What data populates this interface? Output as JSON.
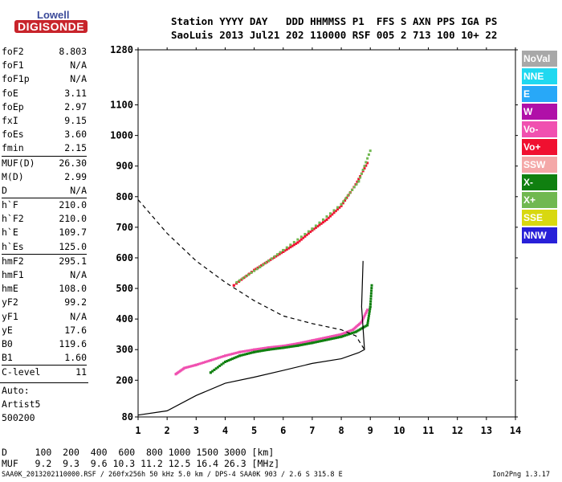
{
  "logo": {
    "top": "Lowell",
    "bottom": "DIGISONDE"
  },
  "header": {
    "line1": "Station YYYY DAY   DDD HHMMSS P1  FFS S AXN PPS IGA PS",
    "line2": "SaoLuis 2013 Jul21 202 110000 RSF 005 2 713 100 10+ 22"
  },
  "params": [
    {
      "label": "foF2",
      "value": "8.803"
    },
    {
      "label": "foF1",
      "value": "N/A"
    },
    {
      "label": "foF1p",
      "value": "N/A"
    },
    {
      "label": "foE",
      "value": "3.11"
    },
    {
      "label": "foEp",
      "value": "2.97"
    },
    {
      "label": "fxI",
      "value": "9.15"
    },
    {
      "label": "foEs",
      "value": "3.60"
    },
    {
      "label": "fmin",
      "value": "2.15"
    },
    {
      "label": "MUF(D)",
      "value": "26.30"
    },
    {
      "label": "M(D)",
      "value": "2.99"
    },
    {
      "label": "D",
      "value": "N/A"
    },
    {
      "label": "h`F",
      "value": "210.0"
    },
    {
      "label": "h`F2",
      "value": "210.0"
    },
    {
      "label": "h`E",
      "value": "109.7"
    },
    {
      "label": "h`Es",
      "value": "125.0"
    },
    {
      "label": "hmF2",
      "value": "295.1"
    },
    {
      "label": "hmF1",
      "value": "N/A"
    },
    {
      "label": "hmE",
      "value": "108.0"
    },
    {
      "label": "yF2",
      "value": "99.2"
    },
    {
      "label": "yF1",
      "value": "N/A"
    },
    {
      "label": "yE",
      "value": "17.6"
    },
    {
      "label": "B0",
      "value": "119.6"
    },
    {
      "label": "B1",
      "value": "1.60"
    },
    {
      "label": "C-level",
      "value": "11"
    }
  ],
  "auto": {
    "label": "Auto:",
    "program": "Artist5",
    "version": "500200"
  },
  "legend": [
    {
      "label": "NoVal",
      "color": "#a8a8a8"
    },
    {
      "label": "NNE",
      "color": "#20d8f0"
    },
    {
      "label": "E",
      "color": "#28a8f8"
    },
    {
      "label": "W",
      "color": "#b010a8"
    },
    {
      "label": "Vo-",
      "color": "#f050b0"
    },
    {
      "label": "Vo+",
      "color": "#f01030"
    },
    {
      "label": "SSW",
      "color": "#f4a8a8"
    },
    {
      "label": "X-",
      "color": "#108010"
    },
    {
      "label": "X+",
      "color": "#70b850"
    },
    {
      "label": "SSE",
      "color": "#d8d810"
    },
    {
      "label": "NNW",
      "color": "#2820d8"
    }
  ],
  "muf_table": {
    "d_label": "D",
    "distances": [
      "100",
      "200",
      "400",
      "600",
      "800",
      "1000",
      "1500",
      "3000"
    ],
    "d_unit": "[km]",
    "muf_label": "MUF",
    "mufs": [
      "9.2",
      "9.3",
      "9.6",
      "10.3",
      "11.2",
      "12.5",
      "16.4",
      "26.3"
    ],
    "muf_unit": "[MHz]"
  },
  "footer": {
    "left": "SAA0K_2013202110000.RSF / 260fx256h 50 kHz 5.0 km / DPS-4 SAA0K 903 / 2.6 S 315.8 E",
    "right": "Ion2Png 1.3.17"
  },
  "chart_data": {
    "type": "scatter",
    "x_ticks": [
      1,
      2,
      3,
      4,
      5,
      6,
      7,
      8,
      9,
      10,
      11,
      12,
      13,
      14
    ],
    "y_ticks": [
      80,
      200,
      300,
      400,
      500,
      600,
      700,
      800,
      900,
      1000,
      1100,
      1280
    ],
    "xlim": [
      1,
      14
    ],
    "ylim": [
      80,
      1280
    ],
    "series": [
      {
        "name": "Vo-",
        "color": "#f050b0",
        "points": [
          [
            2.3,
            220
          ],
          [
            2.6,
            240
          ],
          [
            3.0,
            250
          ],
          [
            3.5,
            265
          ],
          [
            4.0,
            280
          ],
          [
            4.5,
            292
          ],
          [
            5.0,
            300
          ],
          [
            5.5,
            307
          ],
          [
            6.0,
            312
          ],
          [
            6.5,
            320
          ],
          [
            7.0,
            330
          ],
          [
            7.5,
            340
          ],
          [
            8.0,
            350
          ],
          [
            8.4,
            365
          ],
          [
            8.7,
            390
          ],
          [
            8.9,
            430
          ]
        ]
      },
      {
        "name": "X-",
        "color": "#108010",
        "points": [
          [
            3.5,
            225
          ],
          [
            4.0,
            260
          ],
          [
            4.5,
            280
          ],
          [
            5.0,
            292
          ],
          [
            5.5,
            300
          ],
          [
            6.0,
            306
          ],
          [
            6.5,
            313
          ],
          [
            7.0,
            322
          ],
          [
            7.5,
            332
          ],
          [
            8.0,
            342
          ],
          [
            8.5,
            358
          ],
          [
            8.9,
            380
          ],
          [
            9.0,
            440
          ],
          [
            9.05,
            510
          ]
        ]
      },
      {
        "name": "Vo+",
        "color": "#f01030",
        "points": [
          [
            4.3,
            510
          ],
          [
            5.0,
            560
          ],
          [
            5.5,
            590
          ],
          [
            6.0,
            620
          ],
          [
            6.5,
            650
          ],
          [
            7.0,
            690
          ],
          [
            7.5,
            725
          ],
          [
            8.0,
            770
          ],
          [
            8.5,
            840
          ],
          [
            8.9,
            910
          ]
        ]
      },
      {
        "name": "X+",
        "color": "#70b850",
        "points": [
          [
            4.4,
            520
          ],
          [
            5.2,
            570
          ],
          [
            6.0,
            625
          ],
          [
            7.0,
            695
          ],
          [
            8.0,
            775
          ],
          [
            8.6,
            850
          ],
          [
            9.0,
            950
          ]
        ]
      }
    ],
    "profile_solid": [
      [
        1,
        86
      ],
      [
        2,
        100
      ],
      [
        3,
        150
      ],
      [
        4,
        190
      ],
      [
        5,
        210
      ],
      [
        6,
        232
      ],
      [
        7,
        255
      ],
      [
        8,
        270
      ],
      [
        8.6,
        290
      ],
      [
        8.8,
        300
      ],
      [
        8.7,
        440
      ],
      [
        8.75,
        590
      ]
    ],
    "profile_dashed": [
      [
        1,
        790
      ],
      [
        2,
        680
      ],
      [
        3,
        590
      ],
      [
        4,
        520
      ],
      [
        5,
        460
      ],
      [
        6,
        410
      ],
      [
        7,
        385
      ],
      [
        8,
        365
      ],
      [
        8.5,
        345
      ],
      [
        8.8,
        300
      ]
    ]
  }
}
